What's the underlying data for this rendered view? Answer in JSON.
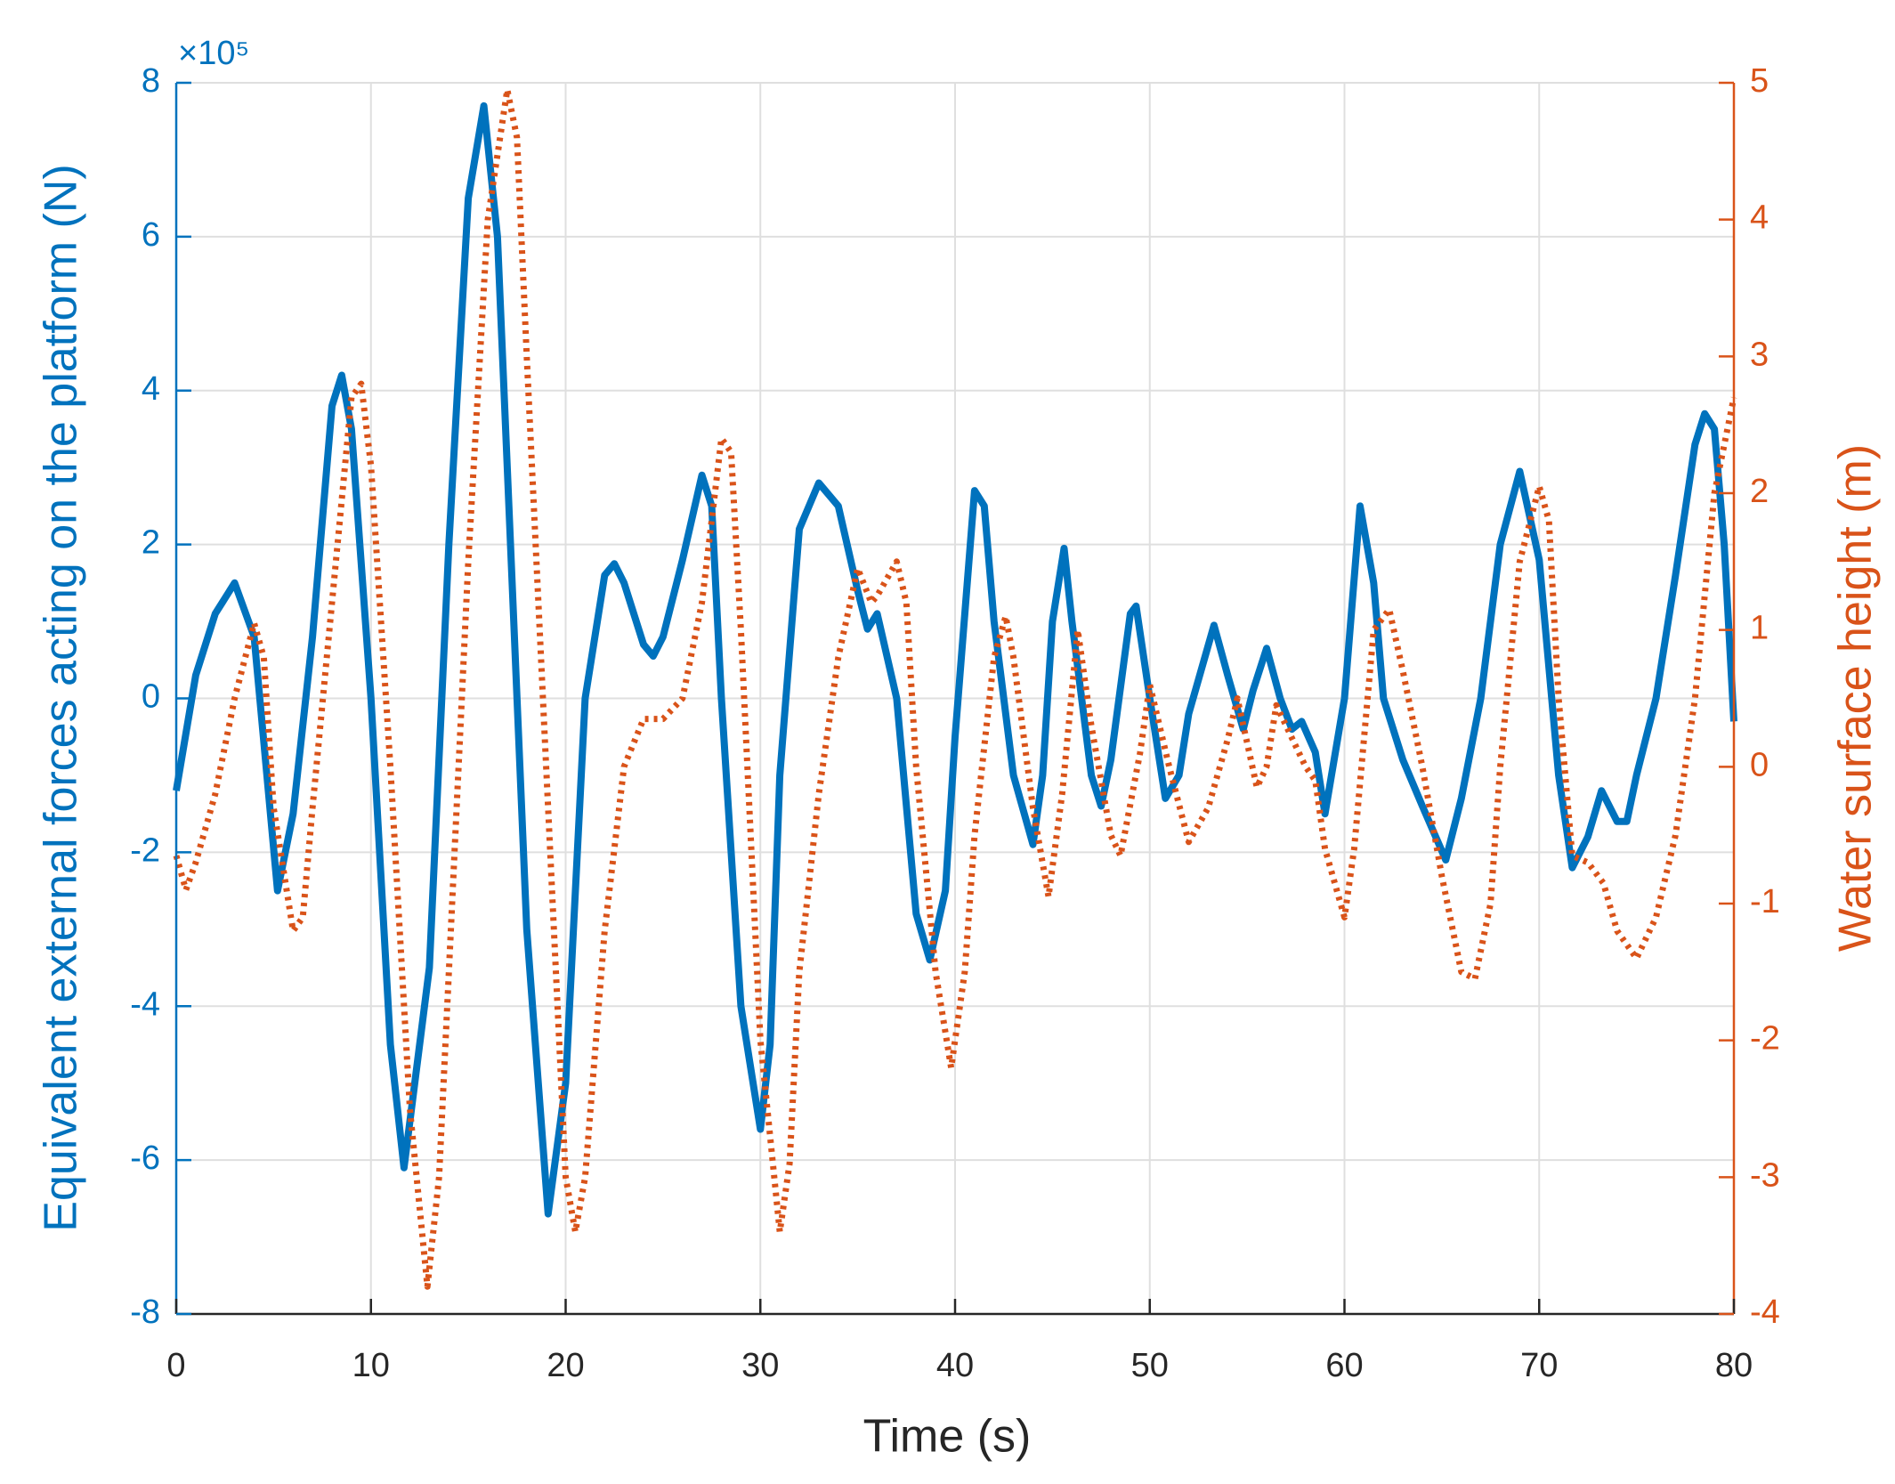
{
  "chart_data": {
    "type": "line",
    "xlabel": "Time (s)",
    "ylabel": "Equivalent external forces acting on the platform (N)",
    "y2label": "Water surface height (m)",
    "y_exponent": "×10⁵",
    "xlim": [
      0,
      80
    ],
    "xticks": [
      0,
      10,
      20,
      30,
      40,
      50,
      60,
      70,
      80
    ],
    "ylim": [
      -800000,
      800000
    ],
    "yticks": [
      {
        "value": -800000,
        "label": "-8"
      },
      {
        "value": -600000,
        "label": "-6"
      },
      {
        "value": -400000,
        "label": "-4"
      },
      {
        "value": -200000,
        "label": "-2"
      },
      {
        "value": 0,
        "label": "0"
      },
      {
        "value": 200000,
        "label": "2"
      },
      {
        "value": 400000,
        "label": "4"
      },
      {
        "value": 600000,
        "label": "6"
      },
      {
        "value": 800000,
        "label": "8"
      }
    ],
    "y2lim": [
      -4,
      5
    ],
    "y2ticks": [
      -4,
      -3,
      -2,
      -1,
      0,
      1,
      2,
      3,
      4,
      5
    ],
    "grid": true,
    "series": [
      {
        "color": "#0072BD",
        "style": "solid",
        "axis": "y",
        "x": [
          0,
          1,
          2,
          3,
          4,
          5.2,
          6,
          7,
          8,
          8.5,
          9,
          10,
          11,
          11.7,
          13,
          14,
          15,
          15.8,
          16.5,
          17,
          18,
          19.1,
          20,
          21,
          22,
          22.5,
          23,
          24,
          24.5,
          25,
          26,
          27,
          27.5,
          28,
          29,
          30,
          30.5,
          31,
          32,
          33,
          34,
          35,
          35.5,
          36,
          37,
          38,
          38.7,
          39.5,
          40,
          41,
          41.5,
          42,
          43,
          44,
          44.5,
          45,
          45.6,
          46,
          47,
          47.5,
          48,
          49,
          49.3,
          50,
          50.8,
          51.5,
          52,
          53.3,
          54,
          54.8,
          55.3,
          56,
          56.7,
          57.3,
          57.8,
          58.5,
          59,
          60,
          60.8,
          61.5,
          62,
          63,
          64,
          65.2,
          66,
          67,
          68,
          69,
          70,
          71,
          71.7,
          72.5,
          73.2,
          74,
          74.5,
          75,
          76,
          77,
          78,
          78.5,
          79,
          79.5,
          80
        ],
        "values": [
          -120000,
          30000,
          110000,
          150000,
          80000,
          -250000,
          -150000,
          80000,
          380000,
          420000,
          350000,
          0,
          -450000,
          -610000,
          -350000,
          200000,
          650000,
          770000,
          600000,
          300000,
          -300000,
          -670000,
          -500000,
          0,
          160000,
          175000,
          150000,
          70000,
          55000,
          80000,
          180000,
          290000,
          250000,
          0,
          -400000,
          -560000,
          -450000,
          -100000,
          220000,
          280000,
          250000,
          140000,
          90000,
          110000,
          0,
          -280000,
          -340000,
          -250000,
          -50000,
          270000,
          250000,
          100000,
          -100000,
          -190000,
          -100000,
          100000,
          195000,
          100000,
          -100000,
          -140000,
          -80000,
          110000,
          120000,
          0,
          -130000,
          -100000,
          -20000,
          95000,
          30000,
          -40000,
          10000,
          65000,
          0,
          -40000,
          -30000,
          -70000,
          -150000,
          0,
          250000,
          150000,
          0,
          -80000,
          -140000,
          -210000,
          -130000,
          0,
          200000,
          295000,
          180000,
          -100000,
          -220000,
          -180000,
          -120000,
          -160000,
          -160000,
          -100000,
          0,
          160000,
          330000,
          370000,
          350000,
          200000,
          -30000
        ]
      },
      {
        "color": "#D95319",
        "style": "dotted",
        "axis": "y2",
        "x": [
          0,
          0.5,
          1,
          2,
          3,
          4,
          4.5,
          5,
          6,
          6.5,
          7,
          8,
          9,
          9.5,
          10,
          11,
          12,
          12.9,
          13.5,
          14,
          15,
          16,
          17,
          17.5,
          18,
          19,
          20,
          20.5,
          21,
          22,
          23,
          24,
          25,
          26,
          27,
          28,
          28.5,
          29,
          30,
          31,
          31.5,
          32,
          33,
          34,
          35,
          35.7,
          36,
          37,
          37.5,
          38,
          39,
          39.8,
          40.5,
          41,
          42,
          42.6,
          43,
          44,
          44.8,
          45.5,
          46.3,
          47,
          48,
          48.5,
          49.5,
          50,
          51,
          52,
          53,
          54,
          54.5,
          55.5,
          56,
          56.5,
          57,
          58,
          58.5,
          59,
          60,
          60.5,
          61.5,
          62.3,
          63,
          64,
          65,
          66,
          66.7,
          67.5,
          68,
          69,
          70,
          70.5,
          71,
          71.7,
          72.5,
          73.3,
          74,
          75,
          76,
          77,
          78,
          79,
          80
        ],
        "values": [
          -0.65,
          -0.9,
          -0.7,
          -0.2,
          0.5,
          1.05,
          0.8,
          -0.3,
          -1.2,
          -1.1,
          -0.3,
          1.2,
          2.7,
          2.8,
          2.2,
          0,
          -2.5,
          -3.8,
          -3,
          -1.5,
          1.5,
          4,
          4.95,
          4.6,
          3,
          0,
          -3,
          -3.4,
          -3,
          -1.2,
          0,
          0.35,
          0.35,
          0.5,
          1.2,
          2.4,
          2.3,
          1,
          -2,
          -3.4,
          -2.9,
          -1.5,
          -0.2,
          0.8,
          1.45,
          1.2,
          1.25,
          1.5,
          1.2,
          0,
          -1.5,
          -2.2,
          -1.5,
          -0.5,
          0.8,
          1.1,
          0.8,
          -0.3,
          -0.95,
          -0.2,
          1,
          0.3,
          -0.5,
          -0.65,
          0.1,
          0.6,
          0,
          -0.55,
          -0.3,
          0.2,
          0.5,
          -0.15,
          0,
          0.45,
          0.3,
          0,
          -0.1,
          -0.6,
          -1.1,
          -0.6,
          1,
          1.15,
          0.7,
          0,
          -0.8,
          -1.5,
          -1.55,
          -1,
          0,
          1.5,
          2.05,
          1.8,
          0.5,
          -0.65,
          -0.7,
          -0.85,
          -1.2,
          -1.4,
          -1.1,
          -0.5,
          0.5,
          2,
          2.7
        ]
      }
    ]
  }
}
